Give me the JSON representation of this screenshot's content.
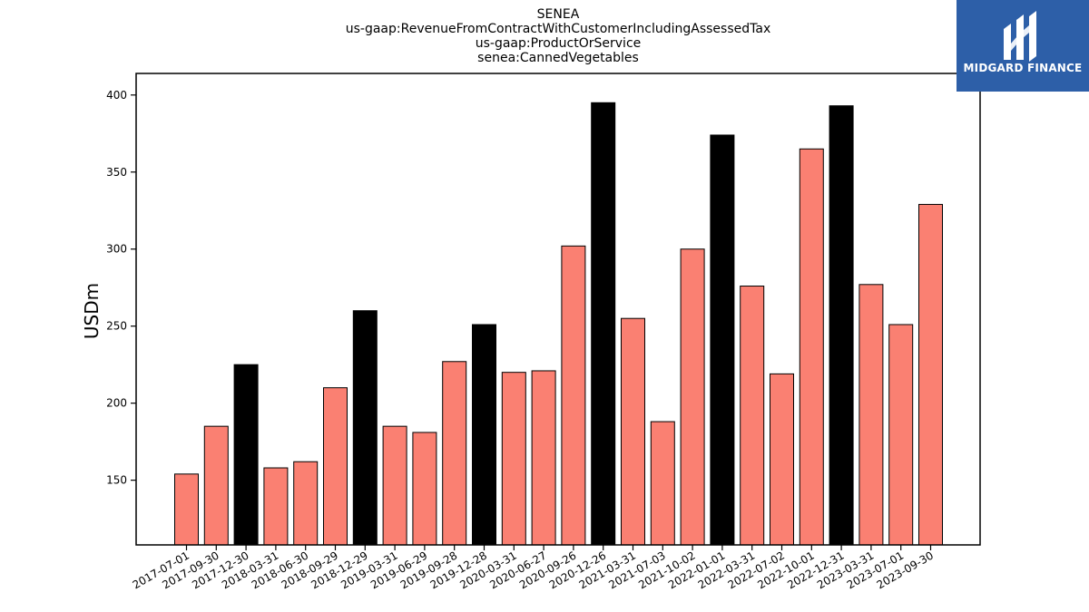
{
  "chart_data": {
    "type": "bar",
    "title_lines": [
      "SENEA",
      "us-gaap:RevenueFromContractWithCustomerIncludingAssessedTax",
      "us-gaap:ProductOrService",
      "senea:CannedVegetables"
    ],
    "ylabel": "USDm",
    "xlabel": "",
    "ylim": [
      108,
      414
    ],
    "yticks": [
      150,
      200,
      250,
      300,
      350,
      400
    ],
    "categories": [
      "2017-07-01",
      "2017-09-30",
      "2017-12-30",
      "2018-03-31",
      "2018-06-30",
      "2018-09-29",
      "2018-12-29",
      "2019-03-31",
      "2019-06-29",
      "2019-09-28",
      "2019-12-28",
      "2020-03-31",
      "2020-06-27",
      "2020-09-26",
      "2020-12-26",
      "2021-03-31",
      "2021-07-03",
      "2021-10-02",
      "2022-01-01",
      "2022-03-31",
      "2022-07-02",
      "2022-10-01",
      "2022-12-31",
      "2023-03-31",
      "2023-07-01",
      "2023-09-30"
    ],
    "values": [
      154,
      185,
      225,
      158,
      162,
      210,
      260,
      185,
      181,
      227,
      251,
      220,
      221,
      302,
      395,
      255,
      188,
      300,
      374,
      276,
      219,
      365,
      393,
      277,
      251,
      329
    ],
    "highlight": [
      false,
      false,
      true,
      false,
      false,
      false,
      true,
      false,
      false,
      false,
      true,
      false,
      false,
      false,
      true,
      false,
      false,
      false,
      true,
      false,
      false,
      false,
      true,
      false,
      false,
      false
    ],
    "colors": {
      "normal": "#fa8072",
      "highlight": "#000000",
      "edge": "#000000"
    }
  },
  "logo": {
    "text": "MIDGARD FINANCE",
    "icon": "midgard-logo-icon",
    "background": "#2d5fa8"
  }
}
